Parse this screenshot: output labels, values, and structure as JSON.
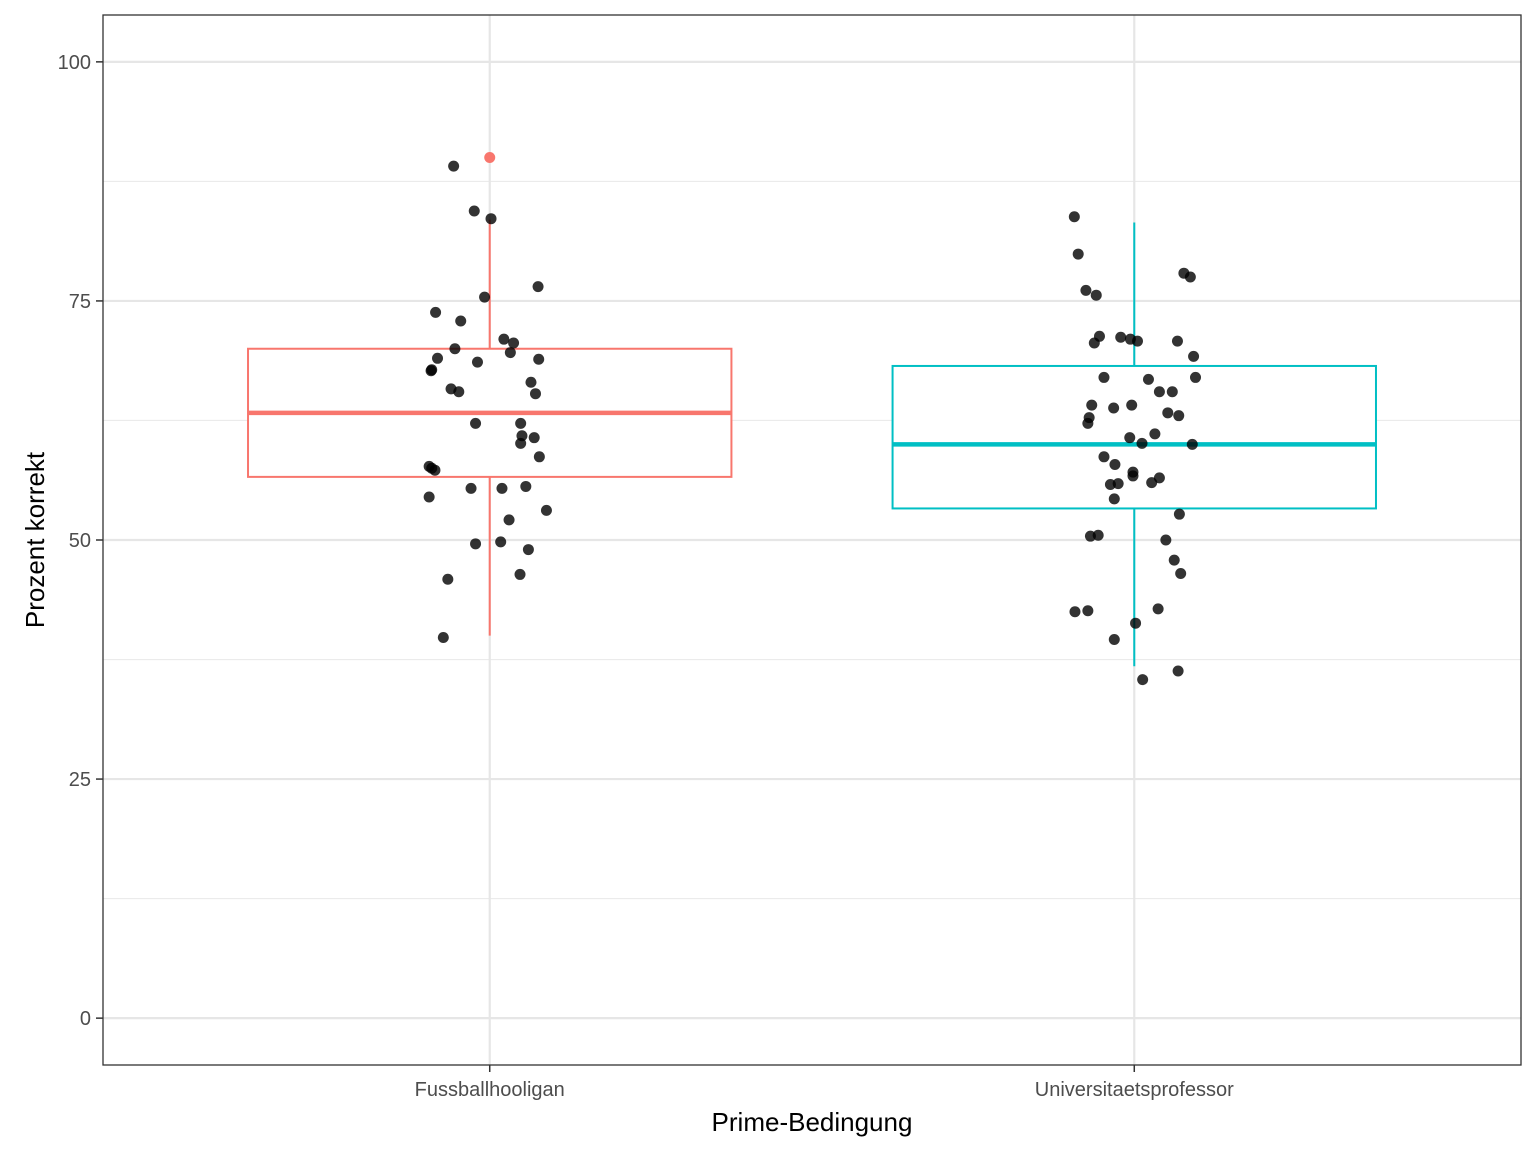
{
  "chart_data": {
    "type": "boxplot",
    "title": "",
    "xlabel": "Prime-Bedingung",
    "ylabel": "Prozent korrekt",
    "ylim": [
      -4.9,
      104.9
    ],
    "y_ticks": [
      0,
      25,
      50,
      75,
      100
    ],
    "y_tick_labels": [
      "0",
      "25",
      "50",
      "75",
      "100"
    ],
    "grid": true,
    "legend": "none",
    "categories": [
      "Fussballhooligan",
      "Universitaetsprofessor"
    ],
    "series": [
      {
        "name": "Fussballhooligan",
        "color": "#F8766D",
        "box": {
          "min": 40,
          "q1": 56.6,
          "median": 63.3,
          "q3": 70,
          "max": 83.5
        },
        "outliers": [
          90
        ],
        "points": [
          [
            -0.056,
            89.1
          ],
          [
            -0.024,
            84.4
          ],
          [
            0.002,
            83.6
          ],
          [
            -0.008,
            75.4
          ],
          [
            0.075,
            76.5
          ],
          [
            -0.084,
            73.8
          ],
          [
            -0.045,
            72.9
          ],
          [
            0.022,
            71.0
          ],
          [
            0.037,
            70.6
          ],
          [
            -0.054,
            70.0
          ],
          [
            0.032,
            69.6
          ],
          [
            -0.081,
            69.0
          ],
          [
            0.076,
            68.9
          ],
          [
            -0.019,
            68.6
          ],
          [
            -0.09,
            67.8
          ],
          [
            -0.091,
            67.7
          ],
          [
            0.064,
            66.5
          ],
          [
            -0.06,
            65.8
          ],
          [
            -0.048,
            65.5
          ],
          [
            0.071,
            65.3
          ],
          [
            -0.022,
            62.2
          ],
          [
            0.048,
            62.2
          ],
          [
            0.05,
            60.9
          ],
          [
            0.069,
            60.7
          ],
          [
            0.048,
            60.1
          ],
          [
            0.077,
            58.7
          ],
          [
            -0.094,
            57.7
          ],
          [
            -0.085,
            57.3
          ],
          [
            -0.09,
            57.5
          ],
          [
            0.056,
            55.6
          ],
          [
            0.019,
            55.4
          ],
          [
            -0.029,
            55.4
          ],
          [
            -0.094,
            54.5
          ],
          [
            0.088,
            53.1
          ],
          [
            0.03,
            52.1
          ],
          [
            -0.022,
            49.6
          ],
          [
            0.017,
            49.8
          ],
          [
            0.06,
            49.0
          ],
          [
            0.047,
            46.4
          ],
          [
            -0.065,
            45.9
          ],
          [
            -0.072,
            39.8
          ]
        ]
      },
      {
        "name": "Universitaetsprofessor",
        "color": "#00BFC4",
        "box": {
          "min": 36.8,
          "q1": 53.3,
          "median": 60,
          "q3": 68.2,
          "max": 83.2
        },
        "outliers": [],
        "points": [
          [
            -0.093,
            83.8
          ],
          [
            -0.087,
            79.9
          ],
          [
            -0.075,
            76.1
          ],
          [
            -0.059,
            75.6
          ],
          [
            0.077,
            77.9
          ],
          [
            0.087,
            77.5
          ],
          [
            -0.054,
            71.3
          ],
          [
            -0.021,
            71.2
          ],
          [
            -0.006,
            71.0
          ],
          [
            0.005,
            70.8
          ],
          [
            -0.062,
            70.6
          ],
          [
            0.067,
            70.8
          ],
          [
            0.092,
            69.2
          ],
          [
            -0.047,
            67.0
          ],
          [
            0.022,
            66.8
          ],
          [
            0.095,
            67.0
          ],
          [
            0.039,
            65.5
          ],
          [
            0.059,
            65.5
          ],
          [
            -0.066,
            64.1
          ],
          [
            -0.032,
            63.8
          ],
          [
            -0.004,
            64.1
          ],
          [
            0.052,
            63.3
          ],
          [
            0.069,
            63.0
          ],
          [
            -0.07,
            62.8
          ],
          [
            -0.072,
            62.2
          ],
          [
            0.032,
            61.1
          ],
          [
            -0.007,
            60.7
          ],
          [
            0.012,
            60.1
          ],
          [
            0.09,
            60.0
          ],
          [
            -0.047,
            58.7
          ],
          [
            -0.03,
            57.9
          ],
          [
            -0.002,
            57.1
          ],
          [
            -0.002,
            56.7
          ],
          [
            0.039,
            56.5
          ],
          [
            0.027,
            56.0
          ],
          [
            -0.037,
            55.8
          ],
          [
            -0.025,
            55.9
          ],
          [
            -0.031,
            54.3
          ],
          [
            0.07,
            52.7
          ],
          [
            -0.056,
            50.5
          ],
          [
            -0.068,
            50.4
          ],
          [
            0.049,
            50.0
          ],
          [
            0.062,
            47.9
          ],
          [
            0.072,
            46.5
          ],
          [
            -0.092,
            42.5
          ],
          [
            -0.072,
            42.6
          ],
          [
            0.037,
            42.8
          ],
          [
            0.002,
            41.3
          ],
          [
            -0.031,
            39.6
          ],
          [
            0.068,
            36.3
          ],
          [
            0.013,
            35.4
          ]
        ]
      }
    ]
  }
}
